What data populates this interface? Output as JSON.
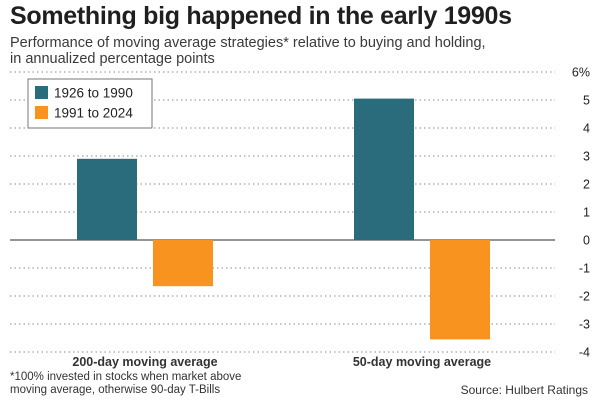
{
  "header": {
    "title": "Something big happened in the early 1990s",
    "subtitle_line1": "Performance of moving average strategies* relative to buying and holding,",
    "subtitle_line2": "in annualized percentage points"
  },
  "footer": {
    "footnote_line1": "*100% invested in stocks when market above",
    "footnote_line2": "moving average, otherwise 90-day T-Bills",
    "source": "Source: Hulbert Ratings"
  },
  "colors": {
    "series1": "#2a6b7c",
    "series2": "#f7931e",
    "grid": "#8a8a8a",
    "text": "#222222"
  },
  "chart_data": {
    "type": "bar",
    "title": "Something big happened in the early 1990s",
    "subtitle": "Performance of moving average strategies* relative to buying and holding, in annualized percentage points",
    "categories": [
      "200-day moving average",
      "50-day moving average"
    ],
    "series": [
      {
        "name": "1926 to 1990",
        "values": [
          2.9,
          5.05
        ]
      },
      {
        "name": "1991 to 2024",
        "values": [
          -1.65,
          -3.55
        ]
      }
    ],
    "xlabel": "",
    "ylabel": "",
    "ylim": [
      -4,
      6
    ],
    "yticks": [
      "6%",
      "5",
      "4",
      "3",
      "2",
      "1",
      "0",
      "-1",
      "-2",
      "-3",
      "-4"
    ],
    "ytick_values": [
      6,
      5,
      4,
      3,
      2,
      1,
      0,
      -1,
      -2,
      -3,
      -4
    ],
    "grid": "dotted horizontal",
    "legend_position": "top-left"
  }
}
